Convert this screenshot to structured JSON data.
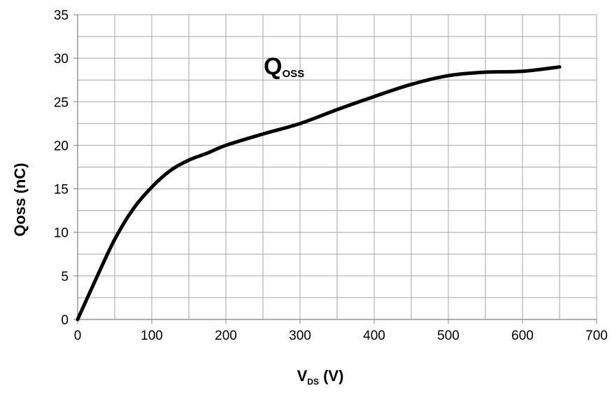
{
  "chart_data": {
    "type": "line",
    "x_label": {
      "main": "V",
      "sub": "DS",
      "unit": " (V)"
    },
    "y_label": "Qoss (nC)",
    "xlim": [
      0,
      700
    ],
    "ylim": [
      0,
      35
    ],
    "x_ticks": [
      0,
      100,
      200,
      300,
      400,
      500,
      600,
      700
    ],
    "y_ticks": [
      0,
      5,
      10,
      15,
      20,
      25,
      30,
      35
    ],
    "grid": true,
    "line_color": "#000000",
    "series": [
      {
        "name": "Q_OSS",
        "x": [
          0,
          25,
          50,
          75,
          100,
          125,
          150,
          175,
          200,
          250,
          300,
          350,
          400,
          450,
          500,
          550,
          600,
          650
        ],
        "y": [
          0,
          4.7,
          9.2,
          12.7,
          15.2,
          17.1,
          18.3,
          19.1,
          20.0,
          21.3,
          22.5,
          24.1,
          25.6,
          27.0,
          28.0,
          28.4,
          28.5,
          29.0
        ]
      }
    ],
    "annotation": {
      "main": "Q",
      "sub": "OSS",
      "x": 0.395,
      "y": 0.89
    }
  }
}
